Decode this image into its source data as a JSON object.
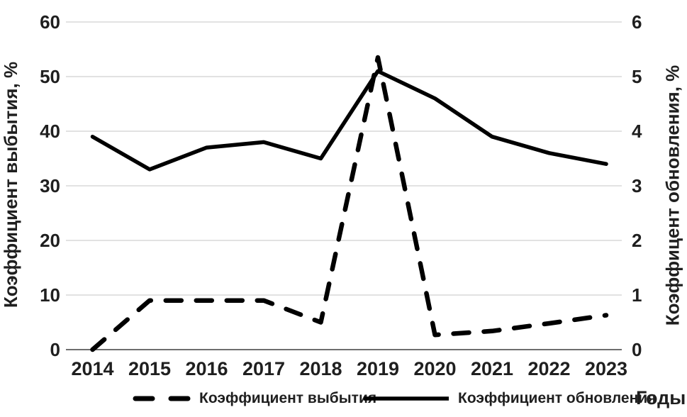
{
  "chart_data": {
    "type": "line",
    "title": "",
    "categories": [
      "2014",
      "2015",
      "2016",
      "2017",
      "2018",
      "2019",
      "2020",
      "2021",
      "2022",
      "2023"
    ],
    "series": [
      {
        "name": "Коэффициент выбытия",
        "axis": "left",
        "style": "dashed",
        "color": "#000000",
        "values": [
          0,
          9,
          9,
          9,
          5,
          53.5,
          2.7,
          3.4,
          4.8,
          6.3
        ]
      },
      {
        "name": "Коэффициент обновления",
        "axis": "right",
        "style": "solid",
        "color": "#000000",
        "values": [
          3.9,
          3.3,
          3.7,
          3.8,
          3.5,
          5.1,
          4.6,
          3.9,
          3.6,
          3.4
        ]
      }
    ],
    "left_axis": {
      "label": "Коэффициент выбытия, %",
      "min": 0,
      "max": 60,
      "step": 10,
      "ticks": [
        0,
        10,
        20,
        30,
        40,
        50,
        60
      ]
    },
    "right_axis": {
      "label": "Коэффицент обновления, %",
      "min": 0,
      "max": 6,
      "step": 1,
      "ticks": [
        0,
        1,
        2,
        3,
        4,
        5,
        6
      ]
    },
    "x_axis": {
      "label": "Годы"
    },
    "grid": "horizontal",
    "legend_position": "bottom",
    "colors": {
      "line": "#000000",
      "gridline": "#d9d9d9",
      "axis_line": "#6e6e6e",
      "text": "#1f1f1f",
      "background": "#ffffff"
    }
  }
}
